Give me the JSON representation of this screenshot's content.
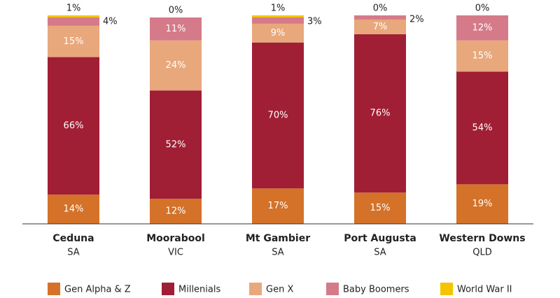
{
  "chart_data": {
    "type": "stacked-bar",
    "categories": [
      [
        "Ceduna",
        "SA"
      ],
      [
        "Moorabool",
        "VIC"
      ],
      [
        "Mt Gambier",
        "SA"
      ],
      [
        "Port Augusta",
        "SA"
      ],
      [
        "Western Downs",
        "QLD"
      ]
    ],
    "series": [
      {
        "name": "Gen Alpha & Z",
        "color": "#d4722a",
        "values": [
          14,
          12,
          17,
          15,
          19
        ],
        "value_labels": [
          "14%",
          "12%",
          "17%",
          "15%",
          "19%"
        ]
      },
      {
        "name": "Millenials",
        "color": "#a01f35",
        "values": [
          66,
          52,
          70,
          76,
          54
        ],
        "value_labels": [
          "66%",
          "52%",
          "70%",
          "76%",
          "54%"
        ]
      },
      {
        "name": "Gen X",
        "color": "#e8a87c",
        "values": [
          15,
          24,
          9,
          7,
          15
        ],
        "value_labels": [
          "15%",
          "24%",
          "9%",
          "7%",
          "15%"
        ]
      },
      {
        "name": "Baby Boomers",
        "color": "#d47a88",
        "values": [
          4,
          11,
          3,
          2,
          12
        ],
        "value_labels": [
          "4%",
          "11%",
          "3%",
          "2%",
          "12%"
        ]
      },
      {
        "name": "World War II",
        "color": "#f5c400",
        "values": [
          1,
          0,
          1,
          0,
          0
        ],
        "value_labels": [
          "1%",
          "0%",
          "1%",
          "0%",
          "0%"
        ]
      }
    ]
  }
}
